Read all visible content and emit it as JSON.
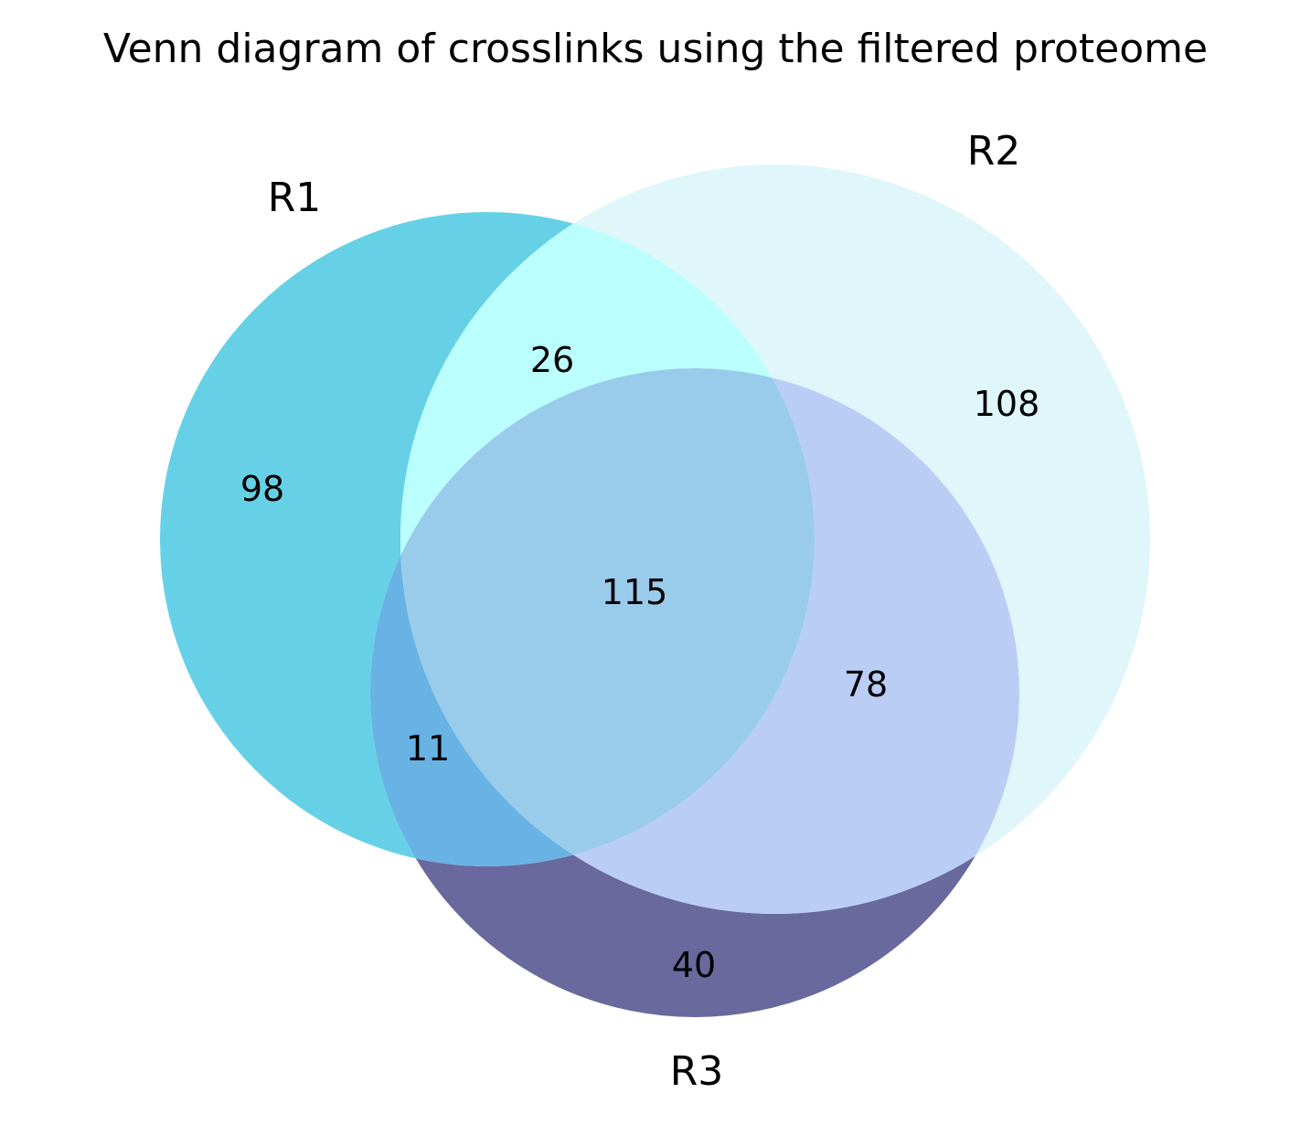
{
  "title": "Venn diagram of crosslinks using the filtered proteome",
  "colors": {
    "R1": "#66d1e6",
    "R2": "#dff6fa",
    "R3": "#69699d",
    "R1_R2": "#bafefe",
    "R1_R3": "#69b2e4",
    "R2_R3": "#bacdf5",
    "R1_R2_R3": "#99cbeb"
  },
  "sets": [
    {
      "name": "R1"
    },
    {
      "name": "R2"
    },
    {
      "name": "R3"
    }
  ],
  "chart_data": {
    "type": "venn",
    "title": "Venn diagram of crosslinks using the filtered proteome",
    "sets": [
      "R1",
      "R2",
      "R3"
    ],
    "regions": [
      {
        "sets": [
          "R1"
        ],
        "count": 98
      },
      {
        "sets": [
          "R2"
        ],
        "count": 108
      },
      {
        "sets": [
          "R3"
        ],
        "count": 40
      },
      {
        "sets": [
          "R1",
          "R2"
        ],
        "count": 26
      },
      {
        "sets": [
          "R1",
          "R3"
        ],
        "count": 11
      },
      {
        "sets": [
          "R2",
          "R3"
        ],
        "count": 78
      },
      {
        "sets": [
          "R1",
          "R2",
          "R3"
        ],
        "count": 115
      }
    ]
  }
}
